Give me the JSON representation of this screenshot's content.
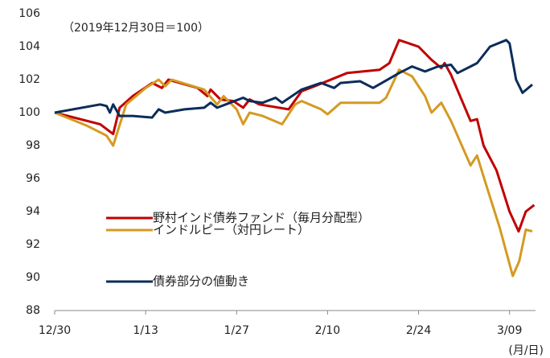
{
  "chart_data": {
    "type": "line",
    "annotation": "（2019年12月30日＝100）",
    "x_unit": "(月/日)",
    "xlim": [
      0,
      74
    ],
    "xticks": [
      {
        "value": 0,
        "label": "12/30"
      },
      {
        "value": 14,
        "label": "1/13"
      },
      {
        "value": 28,
        "label": "1/27"
      },
      {
        "value": 42,
        "label": "2/10"
      },
      {
        "value": 56,
        "label": "2/24"
      },
      {
        "value": 70,
        "label": "3/09"
      }
    ],
    "ylim": [
      88,
      106
    ],
    "yticks": [
      88,
      90,
      92,
      94,
      96,
      98,
      100,
      102,
      104,
      106
    ],
    "series": [
      {
        "name": "野村インド債券ファンド（毎月分配型）",
        "color": "#c00000",
        "x": [
          0,
          7,
          9,
          10,
          12,
          15,
          16.5,
          17.5,
          22,
          23.5,
          24,
          25.5,
          27.5,
          29,
          30,
          31.5,
          36,
          38,
          40,
          45,
          50,
          51.5,
          53,
          56,
          58,
          59.5,
          60,
          61,
          64,
          65,
          66,
          68,
          70,
          71.4,
          72.5,
          73.8
        ],
        "values": [
          100,
          99.3,
          98.7,
          100.3,
          101,
          101.8,
          101.5,
          102,
          101.5,
          101,
          101.4,
          100.8,
          100.7,
          100.3,
          100.8,
          100.5,
          100.2,
          101.3,
          101.6,
          102.4,
          102.6,
          103,
          104.4,
          104,
          103.2,
          102.7,
          103,
          102.3,
          99.5,
          99.6,
          98,
          96.5,
          94,
          92.8,
          94,
          94.4
        ]
      },
      {
        "name": "インドルピー（対円レート）",
        "color": "#d49a22",
        "x": [
          0,
          5,
          8,
          9,
          11,
          14,
          16,
          17,
          18,
          23,
          25,
          26,
          28,
          29,
          30,
          32,
          35,
          37,
          38,
          41,
          42,
          44,
          50,
          51,
          53,
          55,
          57,
          58,
          59.5,
          61,
          64,
          65,
          66.5,
          68.5,
          70.5,
          71.5,
          72.5,
          73.5
        ],
        "values": [
          100,
          99.2,
          98.6,
          98,
          100.5,
          101.5,
          102,
          101.6,
          102,
          101.4,
          100.5,
          101,
          100.2,
          99.3,
          100,
          99.8,
          99.3,
          100.5,
          100.7,
          100.2,
          99.9,
          100.6,
          100.6,
          100.9,
          102.6,
          102.2,
          101,
          100,
          100.6,
          99.5,
          96.8,
          97.4,
          95.5,
          93,
          90.1,
          91,
          92.9,
          92.8
        ]
      },
      {
        "name": "債券部分の値動き",
        "color": "#0b2d5b",
        "x": [
          0,
          7,
          8,
          8.5,
          9,
          10,
          12,
          15,
          16,
          17,
          20,
          23,
          24,
          25,
          27,
          29,
          30,
          32,
          34,
          35,
          38,
          41,
          43,
          44,
          47,
          49,
          53,
          55,
          57,
          59,
          61,
          62,
          63,
          64,
          65,
          67,
          69.5,
          70,
          71,
          72,
          73.5
        ],
        "values": [
          100,
          100.5,
          100.4,
          100,
          100.5,
          99.8,
          99.8,
          99.7,
          100.2,
          100,
          100.2,
          100.3,
          100.6,
          100.3,
          100.6,
          100.9,
          100.7,
          100.6,
          100.9,
          100.6,
          101.4,
          101.8,
          101.5,
          101.8,
          101.9,
          101.5,
          102.4,
          102.8,
          102.5,
          102.8,
          102.9,
          102.4,
          102.6,
          102.8,
          103,
          104,
          104.4,
          104.2,
          102,
          101.2,
          101.7
        ]
      }
    ]
  }
}
